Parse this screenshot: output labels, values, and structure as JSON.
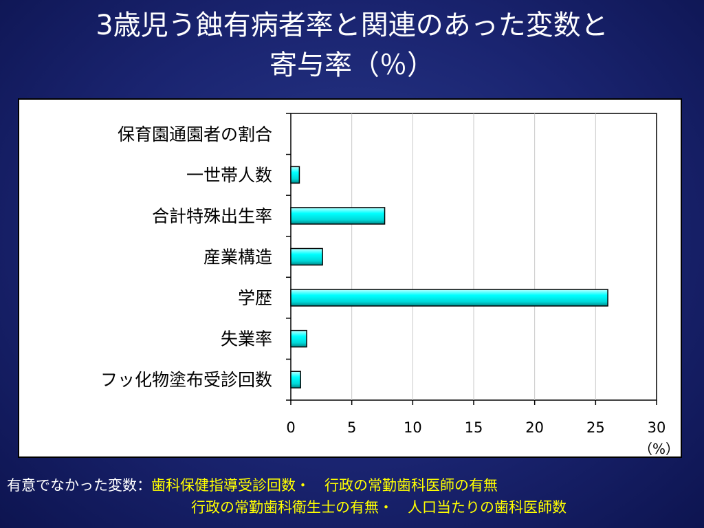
{
  "title": {
    "line1": "3歳児う蝕有病者率と関連のあった変数と",
    "line2": "寄与率（％）"
  },
  "chart_data": {
    "type": "bar",
    "orientation": "horizontal",
    "categories": [
      "保育園通園者の割合",
      "一世帯人数",
      "合計特殊出生率",
      "産業構造",
      "学歴",
      "失業率",
      "フッ化物塗布受診回数"
    ],
    "values": [
      0,
      0.7,
      7.7,
      2.6,
      26.0,
      1.3,
      0.8
    ],
    "xlim": [
      0,
      30
    ],
    "xticks": [
      "0",
      "5",
      "10",
      "15",
      "20",
      "25",
      "30"
    ],
    "unit_label": "（%）",
    "grid": true,
    "bar_color": "#00ffff"
  },
  "footer": {
    "label": "有意でなかった変数：",
    "line1": "歯科保健指導受診回数・　行政の常勤歯科医師の有無",
    "line2": "行政の常勤歯科衛生士の有無・　人口当たりの歯科医師数"
  }
}
